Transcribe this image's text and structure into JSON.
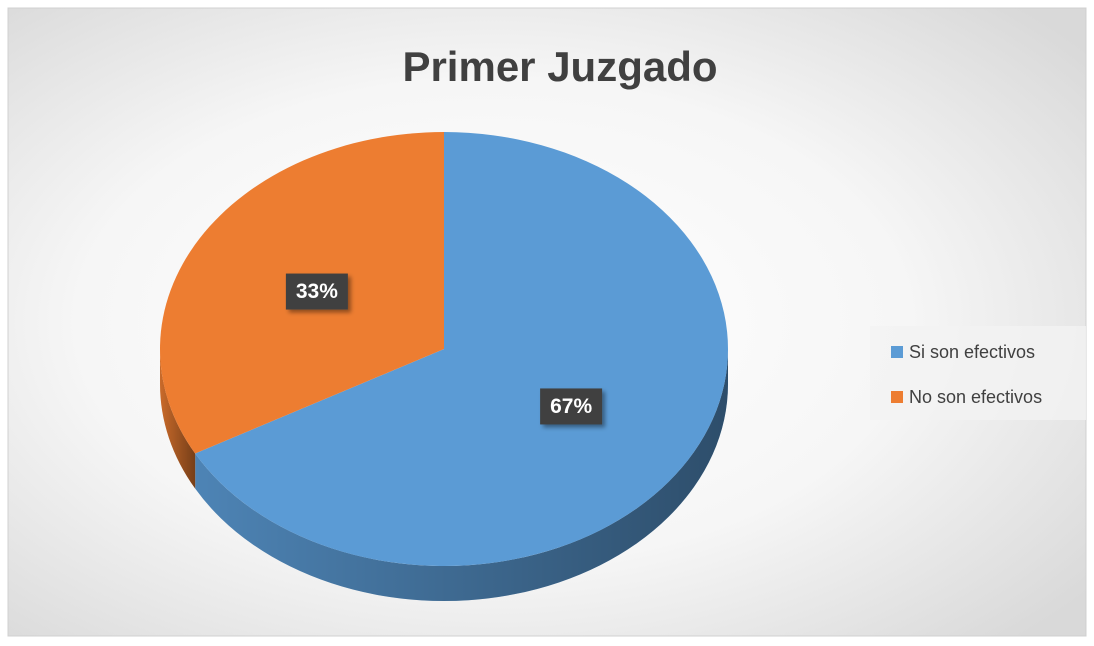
{
  "chart_data": {
    "type": "pie",
    "title": "Primer Juzgado",
    "categories": [
      "Si son efectivos",
      "No son efectivos"
    ],
    "values": [
      67,
      33
    ],
    "value_labels": [
      "67%",
      "33%"
    ],
    "colors": [
      "#5b9bd5",
      "#ed7d31"
    ],
    "legend": "right"
  }
}
